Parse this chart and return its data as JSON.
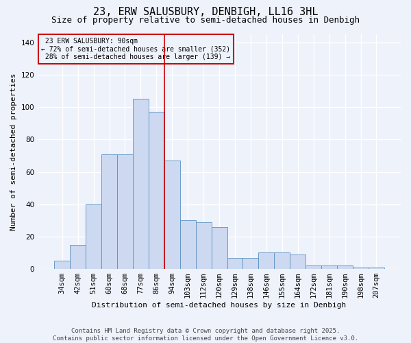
{
  "title": "23, ERW SALUSBURY, DENBIGH, LL16 3HL",
  "subtitle": "Size of property relative to semi-detached houses in Denbigh",
  "xlabel": "Distribution of semi-detached houses by size in Denbigh",
  "ylabel": "Number of semi-detached properties",
  "bar_labels": [
    "34sqm",
    "42sqm",
    "51sqm",
    "60sqm",
    "68sqm",
    "77sqm",
    "86sqm",
    "94sqm",
    "103sqm",
    "112sqm",
    "120sqm",
    "129sqm",
    "138sqm",
    "146sqm",
    "155sqm",
    "164sqm",
    "172sqm",
    "181sqm",
    "190sqm",
    "198sqm",
    "207sqm"
  ],
  "bar_values": [
    5,
    15,
    40,
    71,
    71,
    105,
    97,
    67,
    30,
    29,
    26,
    7,
    7,
    10,
    10,
    9,
    2,
    2,
    2,
    1,
    1
  ],
  "bar_color": "#ccd9f0",
  "bar_edge_color": "#5a8fc2",
  "property_label": "23 ERW SALUSBURY: 90sqm",
  "pct_smaller": 72,
  "n_smaller": 352,
  "pct_larger": 28,
  "n_larger": 139,
  "vline_color": "#cc0000",
  "vline_x": 6.5,
  "ylim": [
    0,
    145
  ],
  "yticks": [
    0,
    20,
    40,
    60,
    80,
    100,
    120,
    140
  ],
  "annotation_box_color": "#cc0000",
  "footer_line1": "Contains HM Land Registry data © Crown copyright and database right 2025.",
  "footer_line2": "Contains public sector information licensed under the Open Government Licence v3.0.",
  "bg_color": "#eef2fb",
  "grid_color": "#ffffff",
  "title_fontsize": 11,
  "subtitle_fontsize": 9,
  "axis_label_fontsize": 8,
  "tick_fontsize": 7.5,
  "annot_fontsize": 7,
  "footer_fontsize": 6.5
}
